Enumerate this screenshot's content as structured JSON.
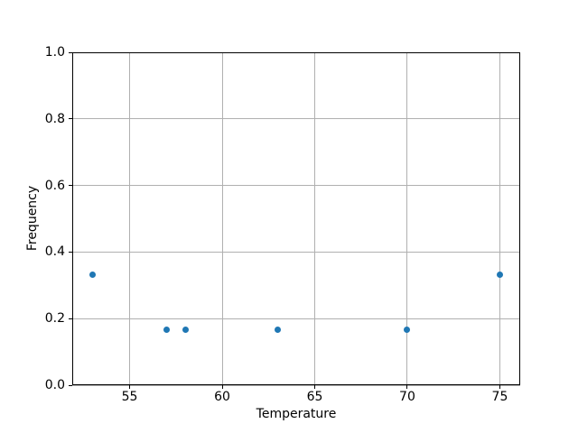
{
  "chart_data": {
    "type": "scatter",
    "title": "",
    "xlabel": "Temperature",
    "ylabel": "Frequency",
    "x": [
      53,
      57,
      58,
      63,
      70,
      75
    ],
    "y": [
      0.333,
      0.167,
      0.167,
      0.167,
      0.167,
      0.333
    ],
    "xlim": [
      51.9,
      76.1
    ],
    "ylim": [
      0.0,
      1.0
    ],
    "xticks": [
      55,
      60,
      65,
      70,
      75
    ],
    "xtick_labels": [
      "55",
      "60",
      "65",
      "70",
      "75"
    ],
    "yticks": [
      0.0,
      0.2,
      0.4,
      0.6,
      0.8,
      1.0
    ],
    "ytick_labels": [
      "0.0",
      "0.2",
      "0.4",
      "0.6",
      "0.8",
      "1.0"
    ],
    "grid": true,
    "legend_position": "none",
    "marker_shape": "circle",
    "marker_color": "#1f77b4",
    "marker_size_px": 7,
    "grid_color": "#b0b0b0",
    "spine_color": "#000000",
    "background_color": "#ffffff"
  }
}
